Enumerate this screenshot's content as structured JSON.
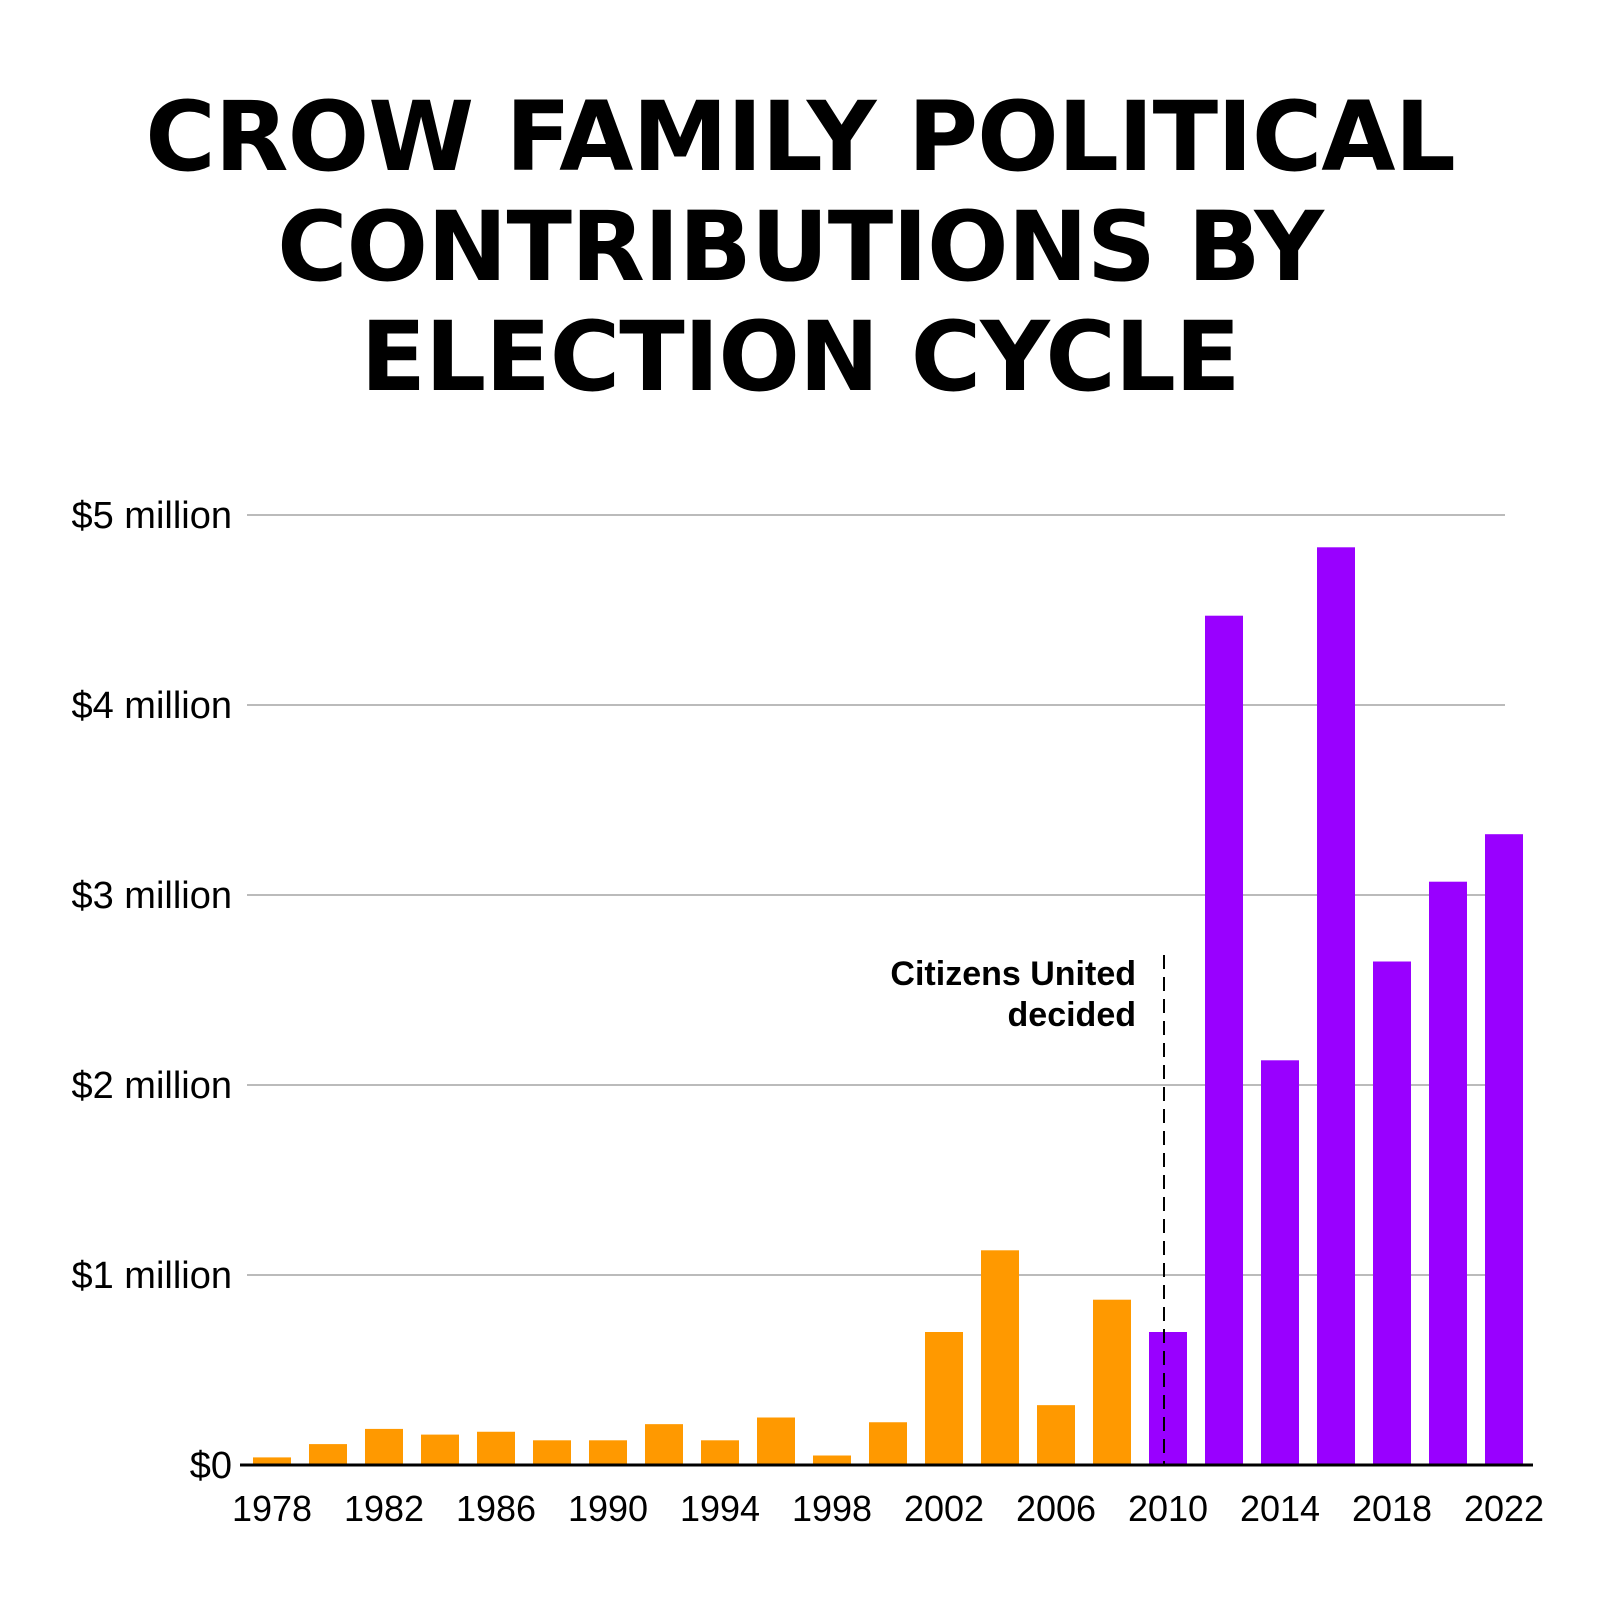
{
  "title_lines": [
    "CROW FAMILY POLITICAL",
    "CONTRIBUTIONS BY",
    "ELECTION CYCLE"
  ],
  "chart_data": {
    "type": "bar",
    "title": "CROW FAMILY POLITICAL CONTRIBUTIONS BY ELECTION CYCLE",
    "categories": [
      1978,
      1980,
      1982,
      1984,
      1986,
      1988,
      1990,
      1992,
      1994,
      1996,
      1998,
      2000,
      2002,
      2004,
      2006,
      2008,
      2010,
      2012,
      2014,
      2016,
      2018,
      2020,
      2022
    ],
    "values": [
      40000,
      110000,
      190000,
      160000,
      175000,
      130000,
      130000,
      215000,
      130000,
      250000,
      50000,
      225000,
      700000,
      1130000,
      315000,
      870000,
      700000,
      4470000,
      2130000,
      4830000,
      2650000,
      3070000,
      3320000
    ],
    "x_tick_labels": [
      "1978",
      "1982",
      "1986",
      "1990",
      "1994",
      "1998",
      "2002",
      "2006",
      "2010",
      "2014",
      "2018",
      "2022"
    ],
    "y_ticks": [
      0,
      1000000,
      2000000,
      3000000,
      4000000,
      5000000
    ],
    "y_tick_labels": [
      "$0",
      "$1 million",
      "$2 million",
      "$3 million",
      "$4 million",
      "$5 million"
    ],
    "ylim": [
      0,
      5000000
    ],
    "grid": true,
    "colors": {
      "before": "#FF9900",
      "after": "#9900FF",
      "grid": "#bbbbbb",
      "axis": "#000000"
    },
    "color_split_year": 2010,
    "annotation": {
      "lines": [
        "Citizens United",
        "decided"
      ],
      "year": 2010,
      "line_style": "dashed"
    }
  }
}
